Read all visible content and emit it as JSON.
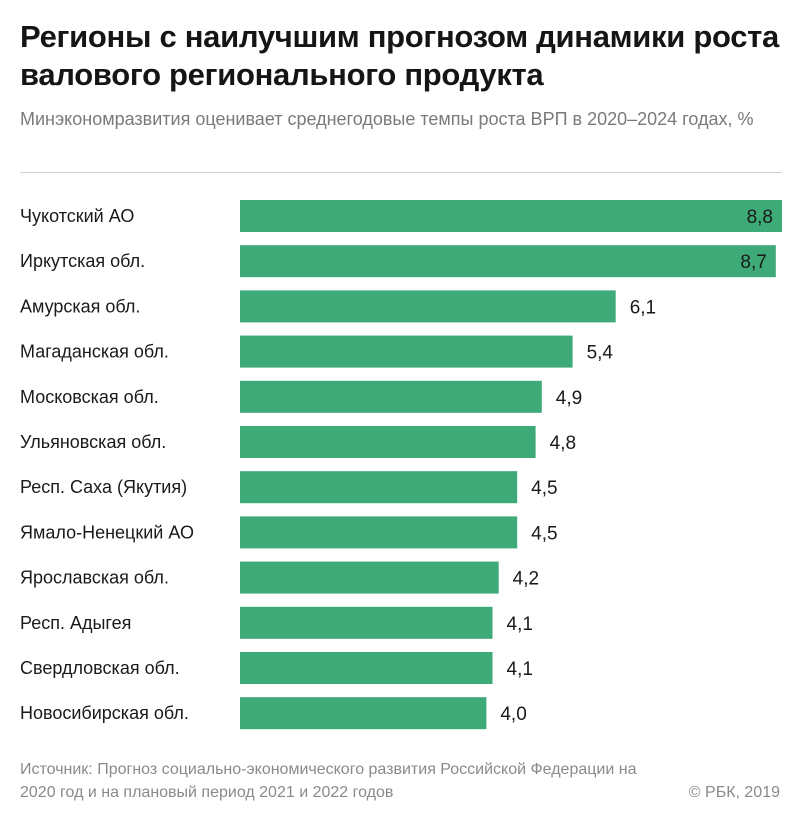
{
  "header": {
    "title": "Регионы с наилучшим прогнозом динамики роста валового регионального продукта",
    "subtitle": "Минэкономразвития оценивает среднегодовые темпы роста ВРП в 2020–2024 годах, %"
  },
  "footer": {
    "source": "Источник: Прогноз социально-экономического развития Российской Федерации на 2020 год и на плановый период 2021 и 2022 годов",
    "copyright": "© РБК, 2019"
  },
  "colors": {
    "bar": "#3daa78",
    "label_inside": "#1a1a1a",
    "label_outside": "#1a1a1a",
    "category_text": "#1a1a1a"
  },
  "chart_data": {
    "type": "bar",
    "orientation": "horizontal",
    "title": "Регионы с наилучшим прогнозом динамики роста валового регионального продукта",
    "subtitle": "Минэкономразвития оценивает среднегодовые темпы роста ВРП в 2020–2024 годах, %",
    "categories": [
      "Чукотский АО",
      "Иркутская обл.",
      "Амурская обл.",
      "Магаданская обл.",
      "Московская обл.",
      "Ульяновская обл.",
      "Респ. Саха (Якутия)",
      "Ямало-Ненецкий АО",
      "Ярославская обл.",
      "Респ. Адыгея",
      "Свердловская обл.",
      "Новосибирская обл."
    ],
    "values": [
      8.8,
      8.7,
      6.1,
      5.4,
      4.9,
      4.8,
      4.5,
      4.5,
      4.2,
      4.1,
      4.1,
      4.0
    ],
    "value_labels": [
      "8,8",
      "8,7",
      "6,1",
      "5,4",
      "4,9",
      "4,8",
      "4,5",
      "4,5",
      "4,2",
      "4,1",
      "4,1",
      "4,0"
    ],
    "xlim": [
      0,
      8.8
    ],
    "grid": false,
    "legend": "none"
  }
}
